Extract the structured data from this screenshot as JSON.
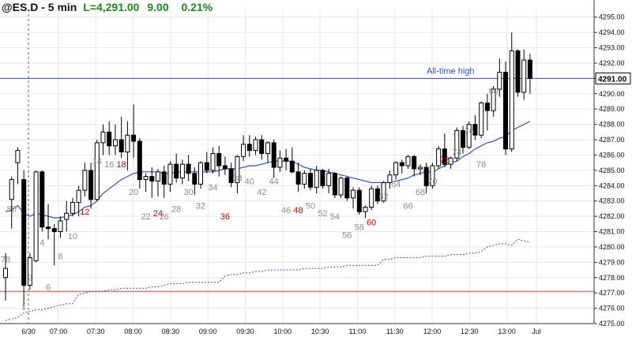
{
  "header": {
    "symbol": "@ES.D - 5 min",
    "last_label": "L=4,291.00",
    "change": "9.00",
    "change_pct": "0.21%"
  },
  "colors": {
    "up_candle": "#ffffff",
    "down_candle": "#000000",
    "ema": "#2b4fd6",
    "prior_day_line": "#2b4fd6",
    "high_line": "#2b4fd6",
    "low_line": "#e04040",
    "bar_count_gray": "#8c8c8c",
    "bar_count_red": "#cc0000",
    "header_green": "#1a8a1a"
  },
  "chart_data": {
    "type": "candlestick",
    "ylim": [
      4275,
      4295.5
    ],
    "y_ticks": [
      "4295.00",
      "4294.00",
      "4293.00",
      "4292.00",
      "4291.00",
      "4290.00",
      "4289.00",
      "4288.00",
      "4287.00",
      "4286.00",
      "4285.00",
      "4284.00",
      "4283.00",
      "4282.00",
      "4281.00",
      "4280.00",
      "4279.00",
      "4278.00",
      "4277.00",
      "4276.00",
      "4275.00"
    ],
    "x_ticks": [
      "6/30",
      "07:00",
      "07:30",
      "08:00",
      "08:30",
      "09:00",
      "09:30",
      "10:00",
      "10:30",
      "11:00",
      "11:30",
      "12:00",
      "12:30",
      "13:00",
      "Jul"
    ],
    "last_price_label": "4291.00",
    "horizontal_lines": [
      {
        "name": "all_time_high",
        "value": 4291.0,
        "label": "All-time high"
      },
      {
        "name": "low_line",
        "value": 4277.1,
        "label": ""
      }
    ],
    "candles": [
      {
        "o": 4278.0,
        "h": 4279.6,
        "l": 4276.5,
        "c": 4278.6
      },
      {
        "o": 4283.1,
        "h": 4284.6,
        "l": 4281.2,
        "c": 4284.4
      },
      {
        "o": 4285.5,
        "h": 4286.5,
        "l": 4284.1,
        "c": 4286.3
      },
      {
        "o": 4284.4,
        "h": 4285.0,
        "l": 4276.0,
        "c": 4277.5
      },
      {
        "o": 4277.5,
        "h": 4279.6,
        "l": 4277.2,
        "c": 4279.3
      },
      {
        "o": 4279.1,
        "h": 4285.0,
        "l": 4279.0,
        "c": 4284.9
      },
      {
        "o": 4284.9,
        "h": 4285.0,
        "l": 4281.0,
        "c": 4281.3
      },
      {
        "o": 4281.3,
        "h": 4282.8,
        "l": 4280.5,
        "c": 4281.2
      },
      {
        "o": 4281.2,
        "h": 4281.5,
        "l": 4278.8,
        "c": 4281.0
      },
      {
        "o": 4281.0,
        "h": 4282.0,
        "l": 4280.6,
        "c": 4281.7
      },
      {
        "o": 4281.8,
        "h": 4283.0,
        "l": 4281.0,
        "c": 4282.2
      },
      {
        "o": 4282.2,
        "h": 4283.2,
        "l": 4282.0,
        "c": 4282.9
      },
      {
        "o": 4282.9,
        "h": 4284.0,
        "l": 4282.0,
        "c": 4283.7
      },
      {
        "o": 4283.7,
        "h": 4285.5,
        "l": 4283.3,
        "c": 4285.0
      },
      {
        "o": 4285.0,
        "h": 4285.5,
        "l": 4282.5,
        "c": 4283.1
      },
      {
        "o": 4283.1,
        "h": 4287.0,
        "l": 4283.0,
        "c": 4286.8
      },
      {
        "o": 4286.8,
        "h": 4288.0,
        "l": 4286.0,
        "c": 4287.5
      },
      {
        "o": 4287.5,
        "h": 4288.2,
        "l": 4286.0,
        "c": 4286.6
      },
      {
        "o": 4286.6,
        "h": 4288.0,
        "l": 4286.0,
        "c": 4287.0
      },
      {
        "o": 4287.0,
        "h": 4288.5,
        "l": 4285.8,
        "c": 4286.2
      },
      {
        "o": 4286.2,
        "h": 4288.2,
        "l": 4285.0,
        "c": 4287.3
      },
      {
        "o": 4287.3,
        "h": 4289.3,
        "l": 4285.8,
        "c": 4286.9
      },
      {
        "o": 4286.9,
        "h": 4287.1,
        "l": 4283.8,
        "c": 4284.4
      },
      {
        "o": 4284.4,
        "h": 4284.8,
        "l": 4283.6,
        "c": 4284.6
      },
      {
        "o": 4284.6,
        "h": 4285.2,
        "l": 4283.2,
        "c": 4284.3
      },
      {
        "o": 4284.3,
        "h": 4285.1,
        "l": 4283.3,
        "c": 4284.9
      },
      {
        "o": 4284.9,
        "h": 4285.3,
        "l": 4283.2,
        "c": 4284.1
      },
      {
        "o": 4284.1,
        "h": 4285.6,
        "l": 4283.6,
        "c": 4285.4
      },
      {
        "o": 4285.4,
        "h": 4286.1,
        "l": 4284.2,
        "c": 4284.5
      },
      {
        "o": 4284.5,
        "h": 4285.7,
        "l": 4284.1,
        "c": 4285.4
      },
      {
        "o": 4285.4,
        "h": 4286.0,
        "l": 4284.3,
        "c": 4284.8
      },
      {
        "o": 4284.8,
        "h": 4285.2,
        "l": 4283.4,
        "c": 4284.1
      },
      {
        "o": 4284.1,
        "h": 4285.6,
        "l": 4283.8,
        "c": 4285.5
      },
      {
        "o": 4285.5,
        "h": 4286.2,
        "l": 4284.8,
        "c": 4285.0
      },
      {
        "o": 4285.0,
        "h": 4286.5,
        "l": 4284.8,
        "c": 4286.1
      },
      {
        "o": 4286.1,
        "h": 4286.6,
        "l": 4284.6,
        "c": 4285.3
      },
      {
        "o": 4285.3,
        "h": 4285.9,
        "l": 4284.7,
        "c": 4285.1
      },
      {
        "o": 4285.1,
        "h": 4285.5,
        "l": 4283.9,
        "c": 4284.2
      },
      {
        "o": 4284.2,
        "h": 4286.0,
        "l": 4283.5,
        "c": 4285.9
      },
      {
        "o": 4285.9,
        "h": 4287.3,
        "l": 4285.6,
        "c": 4286.7
      },
      {
        "o": 4286.7,
        "h": 4287.3,
        "l": 4285.9,
        "c": 4286.3
      },
      {
        "o": 4286.3,
        "h": 4287.2,
        "l": 4286.0,
        "c": 4287.0
      },
      {
        "o": 4287.0,
        "h": 4287.3,
        "l": 4285.7,
        "c": 4286.1
      },
      {
        "o": 4286.1,
        "h": 4286.9,
        "l": 4285.5,
        "c": 4286.8
      },
      {
        "o": 4286.8,
        "h": 4287.0,
        "l": 4284.5,
        "c": 4285.2
      },
      {
        "o": 4285.2,
        "h": 4286.3,
        "l": 4284.9,
        "c": 4285.8
      },
      {
        "o": 4285.8,
        "h": 4286.4,
        "l": 4285.0,
        "c": 4285.6
      },
      {
        "o": 4285.6,
        "h": 4286.5,
        "l": 4284.8,
        "c": 4284.9
      },
      {
        "o": 4284.9,
        "h": 4285.5,
        "l": 4283.6,
        "c": 4284.1
      },
      {
        "o": 4284.1,
        "h": 4285.0,
        "l": 4283.8,
        "c": 4284.8
      },
      {
        "o": 4284.8,
        "h": 4285.1,
        "l": 4283.7,
        "c": 4283.9
      },
      {
        "o": 4283.9,
        "h": 4285.3,
        "l": 4283.5,
        "c": 4285.0
      },
      {
        "o": 4285.0,
        "h": 4285.1,
        "l": 4283.8,
        "c": 4284.0
      },
      {
        "o": 4284.0,
        "h": 4285.1,
        "l": 4283.5,
        "c": 4284.8
      },
      {
        "o": 4284.8,
        "h": 4284.9,
        "l": 4283.2,
        "c": 4283.4
      },
      {
        "o": 4283.4,
        "h": 4284.6,
        "l": 4283.2,
        "c": 4284.5
      },
      {
        "o": 4284.5,
        "h": 4284.6,
        "l": 4283.0,
        "c": 4283.2
      },
      {
        "o": 4283.2,
        "h": 4283.9,
        "l": 4282.5,
        "c": 4283.7
      },
      {
        "o": 4283.7,
        "h": 4283.9,
        "l": 4282.1,
        "c": 4282.3
      },
      {
        "o": 4282.3,
        "h": 4282.7,
        "l": 4281.9,
        "c": 4282.6
      },
      {
        "o": 4282.6,
        "h": 4284.0,
        "l": 4282.4,
        "c": 4283.8
      },
      {
        "o": 4283.8,
        "h": 4284.0,
        "l": 4282.8,
        "c": 4283.0
      },
      {
        "o": 4283.0,
        "h": 4284.3,
        "l": 4282.9,
        "c": 4284.2
      },
      {
        "o": 4284.2,
        "h": 4285.0,
        "l": 4283.8,
        "c": 4284.7
      },
      {
        "o": 4284.7,
        "h": 4285.6,
        "l": 4284.4,
        "c": 4285.5
      },
      {
        "o": 4285.5,
        "h": 4285.7,
        "l": 4284.8,
        "c": 4285.3
      },
      {
        "o": 4285.3,
        "h": 4286.0,
        "l": 4285.1,
        "c": 4285.9
      },
      {
        "o": 4285.9,
        "h": 4286.0,
        "l": 4284.6,
        "c": 4285.1
      },
      {
        "o": 4285.1,
        "h": 4285.4,
        "l": 4284.7,
        "c": 4285.2
      },
      {
        "o": 4285.2,
        "h": 4285.5,
        "l": 4283.5,
        "c": 4284.0
      },
      {
        "o": 4284.0,
        "h": 4285.5,
        "l": 4283.8,
        "c": 4285.3
      },
      {
        "o": 4285.3,
        "h": 4286.6,
        "l": 4285.1,
        "c": 4286.4
      },
      {
        "o": 4286.4,
        "h": 4287.4,
        "l": 4285.2,
        "c": 4285.4
      },
      {
        "o": 4285.4,
        "h": 4285.9,
        "l": 4285.1,
        "c": 4285.8
      },
      {
        "o": 4285.8,
        "h": 4287.8,
        "l": 4285.6,
        "c": 4287.6
      },
      {
        "o": 4287.6,
        "h": 4287.9,
        "l": 4286.1,
        "c": 4286.5
      },
      {
        "o": 4286.5,
        "h": 4288.2,
        "l": 4286.4,
        "c": 4288.0
      },
      {
        "o": 4288.0,
        "h": 4288.6,
        "l": 4287.0,
        "c": 4287.3
      },
      {
        "o": 4287.3,
        "h": 4289.5,
        "l": 4287.1,
        "c": 4289.4
      },
      {
        "o": 4289.4,
        "h": 4290.0,
        "l": 4287.6,
        "c": 4288.9
      },
      {
        "o": 4288.9,
        "h": 4290.5,
        "l": 4288.5,
        "c": 4290.3
      },
      {
        "o": 4290.3,
        "h": 4292.3,
        "l": 4289.8,
        "c": 4291.4
      },
      {
        "o": 4291.4,
        "h": 4292.1,
        "l": 4286.0,
        "c": 4286.4
      },
      {
        "o": 4286.4,
        "h": 4294.0,
        "l": 4286.2,
        "c": 4292.8
      },
      {
        "o": 4292.8,
        "h": 4292.9,
        "l": 4289.8,
        "c": 4290.1
      },
      {
        "o": 4290.1,
        "h": 4292.9,
        "l": 4289.6,
        "c": 4292.2
      },
      {
        "o": 4292.2,
        "h": 4292.6,
        "l": 4290.0,
        "c": 4291.0
      }
    ],
    "ema": [
      4282.3,
      4282.4,
      4282.7,
      4282.2,
      4282.0,
      4282.2,
      4282.1,
      4282.0,
      4281.9,
      4281.9,
      4282.0,
      4282.1,
      4282.3,
      4282.6,
      4282.7,
      4283.0,
      4283.5,
      4283.8,
      4284.1,
      4284.4,
      4284.6,
      4284.8,
      4284.9,
      4284.9,
      4284.9,
      4284.9,
      4284.8,
      4284.8,
      4284.9,
      4284.9,
      4284.9,
      4284.9,
      4284.9,
      4284.9,
      4284.9,
      4285.0,
      4285.1,
      4285.1,
      4285.1,
      4285.2,
      4285.3,
      4285.3,
      4285.4,
      4285.5,
      4285.6,
      4285.6,
      4285.6,
      4285.6,
      4285.4,
      4285.2,
      4285.1,
      4285.0,
      4285.0,
      4284.9,
      4284.8,
      4284.7,
      4284.6,
      4284.5,
      4284.4,
      4284.3,
      4284.2,
      4284.2,
      4284.2,
      4284.2,
      4284.3,
      4284.4,
      4284.5,
      4284.7,
      4284.8,
      4284.9,
      4284.9,
      4285.1,
      4285.3,
      4285.5,
      4285.6,
      4285.9,
      4286.1,
      4286.4,
      4286.6,
      4286.8,
      4286.9,
      4287.1,
      4287.2,
      4287.6,
      4287.8,
      4288.0,
      4288.2
    ],
    "prior_day_line": [
      4275.2,
      4275.3,
      4275.4,
      4275.7,
      4275.8,
      4275.9,
      4275.9,
      4276.0,
      4276.1,
      4276.2,
      4276.3,
      4276.3,
      4276.9,
      4277.0,
      4277.1,
      4277.1,
      4277.1,
      4277.2,
      4277.2,
      4277.3,
      4277.3,
      4277.3,
      4277.3,
      4277.3,
      4277.4,
      4277.4,
      4277.5,
      4277.6,
      4277.6,
      4277.6,
      4277.7,
      4277.7,
      4277.7,
      4277.7,
      4277.7,
      4277.7,
      4278.1,
      4278.2,
      4278.2,
      4278.3,
      4278.3,
      4278.4,
      4278.4,
      4278.5,
      4278.5,
      4278.5,
      4278.5,
      4278.5,
      4278.5,
      4278.6,
      4278.6,
      4278.6,
      4278.6,
      4278.7,
      4278.7,
      4278.7,
      4278.8,
      4278.8,
      4278.8,
      4278.8,
      4278.8,
      4278.8,
      4279.2,
      4279.2,
      4279.3,
      4279.3,
      4279.3,
      4279.3,
      4279.3,
      4279.4,
      4279.4,
      4279.4,
      4279.4,
      4279.5,
      4279.5,
      4279.5,
      4279.6,
      4279.6,
      4279.7,
      4280.0,
      4280.1,
      4280.2,
      4280.2,
      4280.1,
      4280.5,
      4280.4,
      4280.3
    ],
    "bar_labels": [
      {
        "bar": 0,
        "text": "78",
        "y": 4279.0,
        "color": "gray"
      },
      {
        "bar": 1,
        "text": "80",
        "y": 4282.3,
        "color": "gray"
      },
      {
        "bar": 3,
        "text": "1",
        "y": 4275.9,
        "color": "gray"
      },
      {
        "bar": 4,
        "text": "2",
        "y": 4277.8,
        "color": "gray"
      },
      {
        "bar": 6,
        "text": "4",
        "y": 4280.1,
        "color": "gray"
      },
      {
        "bar": 7,
        "text": "6",
        "y": 4277.2,
        "color": "gray"
      },
      {
        "bar": 9,
        "text": "8",
        "y": 4279.2,
        "color": "gray"
      },
      {
        "bar": 11,
        "text": "10",
        "y": 4280.5,
        "color": "gray"
      },
      {
        "bar": 13,
        "text": "12",
        "y": 4282.1,
        "color": "red"
      },
      {
        "bar": 15,
        "text": "14",
        "y": 4285.4,
        "color": "gray"
      },
      {
        "bar": 17,
        "text": "16",
        "y": 4285.2,
        "color": "gray"
      },
      {
        "bar": 19,
        "text": "18",
        "y": 4285.2,
        "color": "red"
      },
      {
        "bar": 21,
        "text": "20",
        "y": 4283.4,
        "color": "gray"
      },
      {
        "bar": 23,
        "text": "22",
        "y": 4281.8,
        "color": "gray"
      },
      {
        "bar": 25,
        "text": "24",
        "y": 4282.0,
        "color": "red"
      },
      {
        "bar": 26,
        "text": "26",
        "y": 4281.8,
        "color": "gray"
      },
      {
        "bar": 28,
        "text": "28",
        "y": 4282.3,
        "color": "gray"
      },
      {
        "bar": 30,
        "text": "30",
        "y": 4283.4,
        "color": "gray"
      },
      {
        "bar": 32,
        "text": "32",
        "y": 4282.5,
        "color": "gray"
      },
      {
        "bar": 34,
        "text": "34",
        "y": 4283.7,
        "color": "gray"
      },
      {
        "bar": 36,
        "text": "36",
        "y": 4281.8,
        "color": "red"
      },
      {
        "bar": 38,
        "text": "38",
        "y": 4284.3,
        "color": "gray"
      },
      {
        "bar": 40,
        "text": "40",
        "y": 4284.1,
        "color": "gray"
      },
      {
        "bar": 42,
        "text": "42",
        "y": 4283.4,
        "color": "gray"
      },
      {
        "bar": 44,
        "text": "44",
        "y": 4284.1,
        "color": "gray"
      },
      {
        "bar": 46,
        "text": "46",
        "y": 4282.2,
        "color": "gray"
      },
      {
        "bar": 48,
        "text": "48",
        "y": 4282.2,
        "color": "red"
      },
      {
        "bar": 50,
        "text": "50",
        "y": 4282.5,
        "color": "gray"
      },
      {
        "bar": 52,
        "text": "52",
        "y": 4282.0,
        "color": "gray"
      },
      {
        "bar": 54,
        "text": "54",
        "y": 4281.8,
        "color": "gray"
      },
      {
        "bar": 56,
        "text": "56",
        "y": 4280.6,
        "color": "gray"
      },
      {
        "bar": 58,
        "text": "58",
        "y": 4281.1,
        "color": "gray"
      },
      {
        "bar": 60,
        "text": "60",
        "y": 4281.4,
        "color": "red"
      },
      {
        "bar": 62,
        "text": "62",
        "y": 4283.1,
        "color": "gray"
      },
      {
        "bar": 64,
        "text": "64",
        "y": 4283.9,
        "color": "gray"
      },
      {
        "bar": 66,
        "text": "66",
        "y": 4282.5,
        "color": "gray"
      },
      {
        "bar": 68,
        "text": "68",
        "y": 4283.4,
        "color": "gray"
      },
      {
        "bar": 70,
        "text": "70",
        "y": 4284.1,
        "color": "gray"
      },
      {
        "bar": 72,
        "text": "72",
        "y": 4285.5,
        "color": "red"
      },
      {
        "bar": 74,
        "text": "74",
        "y": 4286.0,
        "color": "gray"
      },
      {
        "bar": 76,
        "text": "76",
        "y": 4287.4,
        "color": "gray"
      },
      {
        "bar": 78,
        "text": "78",
        "y": 4285.2,
        "color": "gray"
      },
      {
        "bar": 80,
        "text": "80",
        "y": 4290.0,
        "color": "gray"
      }
    ]
  }
}
